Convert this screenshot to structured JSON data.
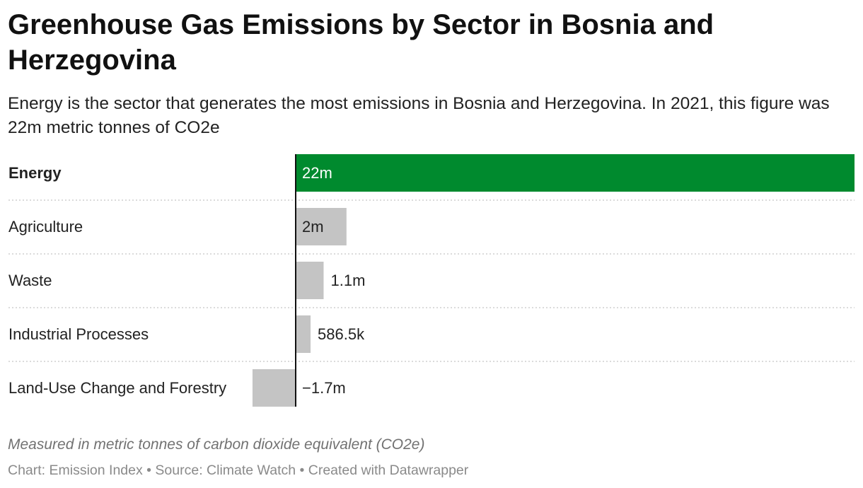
{
  "chart_data": {
    "type": "bar",
    "orientation": "horizontal",
    "title": "Greenhouse Gas Emissions by Sector in Bosnia and Herzegovina",
    "subtitle": "Energy is the sector that generates the most emissions in Bosnia and Herzegovina. In 2021, this figure was 22m metric tonnes of CO2e",
    "categories": [
      "Energy",
      "Agriculture",
      "Waste",
      "Industrial Processes",
      "Land-Use Change and Forestry"
    ],
    "values": [
      22000000,
      2000000,
      1100000,
      586500,
      -1700000
    ],
    "value_labels": [
      "22m",
      "2m",
      "1.1m",
      "586.5k",
      "−1.7m"
    ],
    "highlight_category": "Energy",
    "notes": "Measured in metric tonnes of carbon dioxide equivalent (CO2e)",
    "footer": "Chart: Emission Index • Source: Climate Watch • Created with Datawrapper"
  },
  "colors": {
    "highlight": "#008a2e",
    "default_bar": "#c4c4c4",
    "axis": "#111111",
    "gridline": "#cfcfcf"
  }
}
